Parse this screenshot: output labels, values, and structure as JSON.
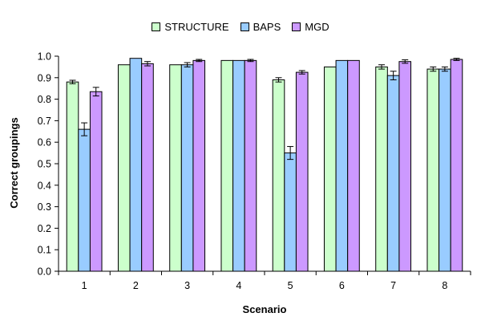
{
  "chart_data": {
    "type": "bar",
    "categories": [
      "1",
      "2",
      "3",
      "4",
      "5",
      "6",
      "7",
      "8"
    ],
    "series": [
      {
        "name": "STRUCTURE",
        "color": "#ccffcc",
        "values": [
          0.88,
          0.96,
          0.96,
          0.98,
          0.89,
          0.95,
          0.95,
          0.94
        ],
        "errors": [
          0.008,
          0,
          0,
          0,
          0.01,
          0,
          0.01,
          0.01
        ]
      },
      {
        "name": "BAPS",
        "color": "#99ccff",
        "values": [
          0.66,
          0.99,
          0.96,
          0.98,
          0.55,
          0.98,
          0.91,
          0.94
        ],
        "errors": [
          0.03,
          0,
          0.01,
          0,
          0.03,
          0,
          0.02,
          0.01
        ]
      },
      {
        "name": "MGD",
        "color": "#cc99ff",
        "values": [
          0.835,
          0.965,
          0.98,
          0.98,
          0.925,
          0.98,
          0.975,
          0.985
        ],
        "errors": [
          0.02,
          0.01,
          0.005,
          0.005,
          0.008,
          0,
          0.008,
          0.005
        ]
      }
    ],
    "xlabel": "Scenario",
    "ylabel": "Correct groupings",
    "ylim": [
      0,
      1.0
    ],
    "yticks": [
      "0.0",
      "0.1",
      "0.2",
      "0.3",
      "0.4",
      "0.5",
      "0.6",
      "0.7",
      "0.8",
      "0.9",
      "1.0"
    ],
    "grid": false,
    "legend_position": "top"
  }
}
